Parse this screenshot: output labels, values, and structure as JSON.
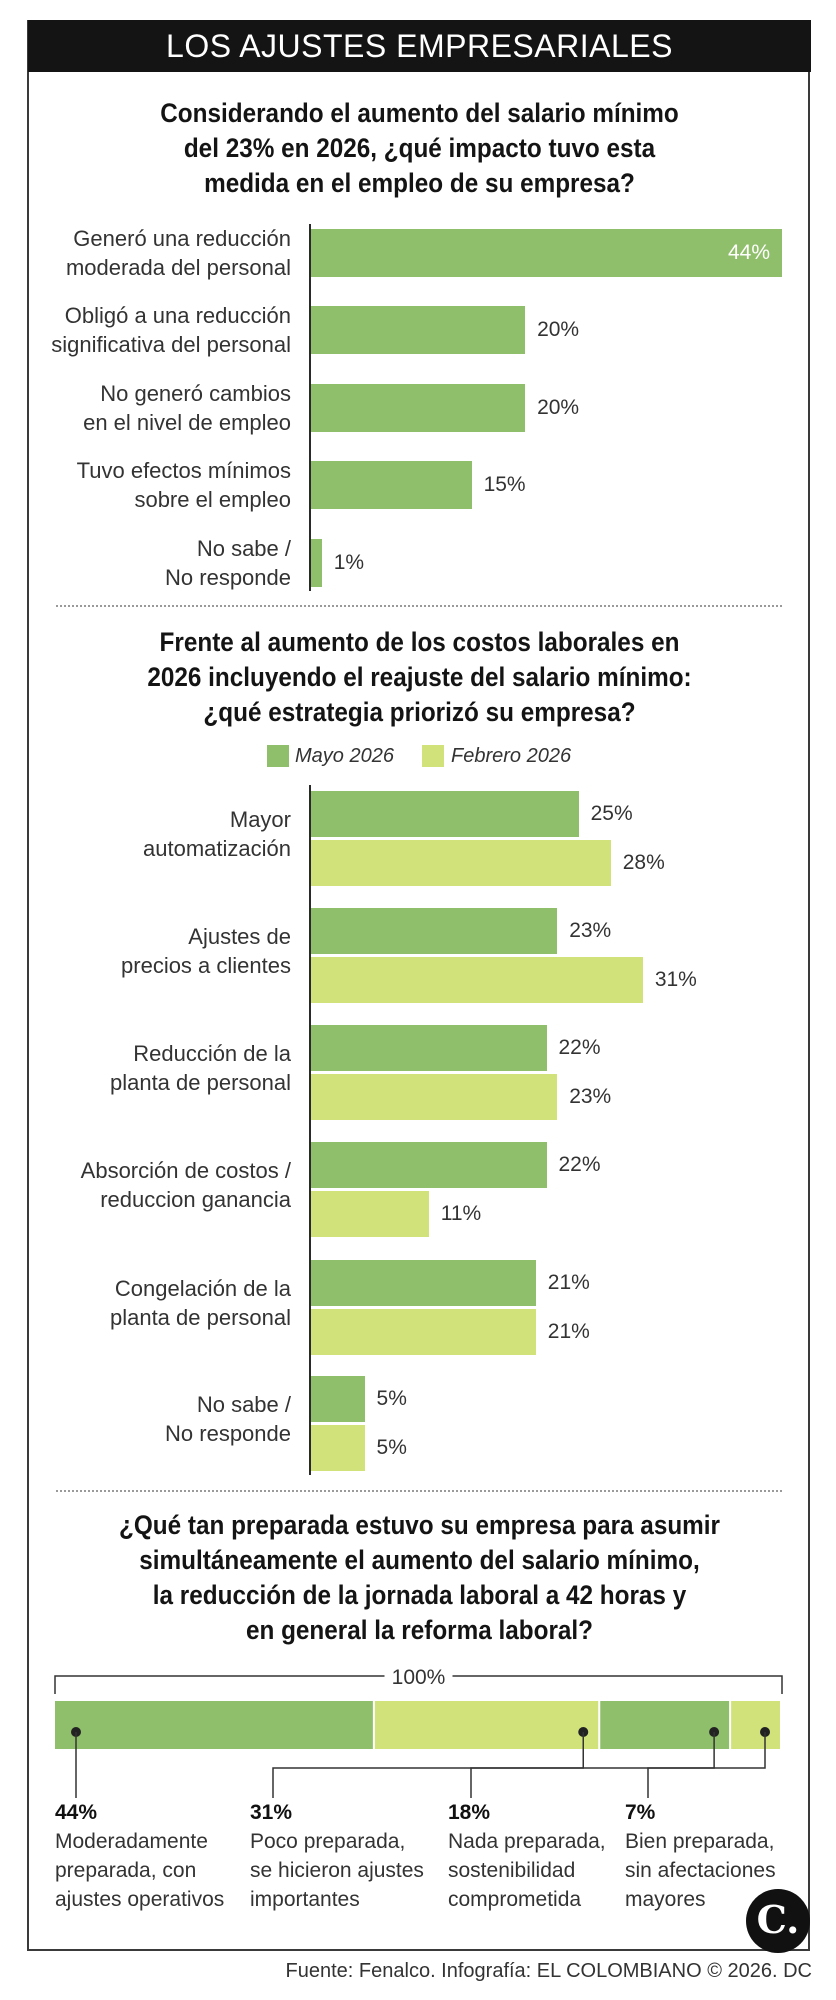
{
  "header": {
    "title": "LOS AJUSTES EMPRESARIALES"
  },
  "colors": {
    "green": "#8fbf6a",
    "lime": "#d1e27a",
    "header_bg": "#141414"
  },
  "chart_data": [
    {
      "type": "bar",
      "orientation": "horizontal",
      "title": [
        "Considerando el aumento del salario mínimo",
        "del 23% en 2026, ¿qué impacto tuvo esta",
        "medida en el empleo de su empresa?"
      ],
      "categories": [
        [
          "Generó una reducción",
          "moderada del personal"
        ],
        [
          "Obligó a una reducción",
          "significativa del personal"
        ],
        [
          "No generó cambios",
          "en el nivel de empleo"
        ],
        [
          "Tuvo efectos mínimos",
          "sobre el empleo"
        ],
        [
          "No sabe /",
          "No responde"
        ]
      ],
      "values": [
        44,
        20,
        20,
        15,
        1
      ],
      "value_labels": [
        "44%",
        "20%",
        "20%",
        "15%",
        "1%"
      ],
      "xlim": [
        0,
        44
      ],
      "color": "#8fbf6a"
    },
    {
      "type": "bar",
      "orientation": "horizontal",
      "title": [
        "Frente al aumento de los costos laborales en",
        "2026 incluyendo el reajuste del salario mínimo:",
        "¿qué estrategia priorizó su empresa?"
      ],
      "legend": "top",
      "categories": [
        [
          "Mayor",
          "automatización"
        ],
        [
          "Ajustes de",
          "precios a clientes"
        ],
        [
          "Reducción de la",
          "planta de personal"
        ],
        [
          "Absorción de costos /",
          "reduccion ganancia"
        ],
        [
          "Congelación de la",
          "planta de personal"
        ],
        [
          "No sabe /",
          "No responde"
        ]
      ],
      "series": [
        {
          "name": "Mayo 2026",
          "color": "#8fbf6a",
          "values": [
            25,
            23,
            22,
            22,
            21,
            5
          ],
          "labels": [
            "25%",
            "23%",
            "22%",
            "22%",
            "21%",
            "5%"
          ]
        },
        {
          "name": "Febrero 2026",
          "color": "#d1e27a",
          "values": [
            28,
            31,
            23,
            11,
            21,
            5
          ],
          "labels": [
            "28%",
            "31%",
            "23%",
            "11%",
            "21%",
            "5%"
          ]
        }
      ],
      "xlim": [
        0,
        44
      ]
    },
    {
      "type": "bar",
      "orientation": "stacked-horizontal",
      "title": [
        "¿Qué tan preparada estuvo su empresa para asumir",
        "simultáneamente el aumento del salario mínimo,",
        "la reducción  de la jornada laboral a 42 horas y",
        "en general la reforma laboral?"
      ],
      "total_label": "100%",
      "segments": [
        {
          "value": 44,
          "pct": "44%",
          "color": "#8fbf6a",
          "label": [
            "Moderadamente",
            "preparada, con",
            "ajustes operativos"
          ]
        },
        {
          "value": 31,
          "pct": "31%",
          "color": "#d1e27a",
          "label": [
            "Poco preparada,",
            "se hicieron ajustes",
            "importantes"
          ]
        },
        {
          "value": 18,
          "pct": "18%",
          "color": "#8fbf6a",
          "label": [
            "Nada preparada,",
            "sostenibilidad",
            "comprometida"
          ]
        },
        {
          "value": 7,
          "pct": "7%",
          "color": "#d1e27a",
          "label": [
            "Bien preparada,",
            "sin afectaciones",
            "mayores"
          ]
        }
      ]
    }
  ],
  "footer": {
    "source": "Fuente: Fenalco. Infografía: EL COLOMBIANO © 2026. DC"
  },
  "logo": {
    "text": "C."
  }
}
